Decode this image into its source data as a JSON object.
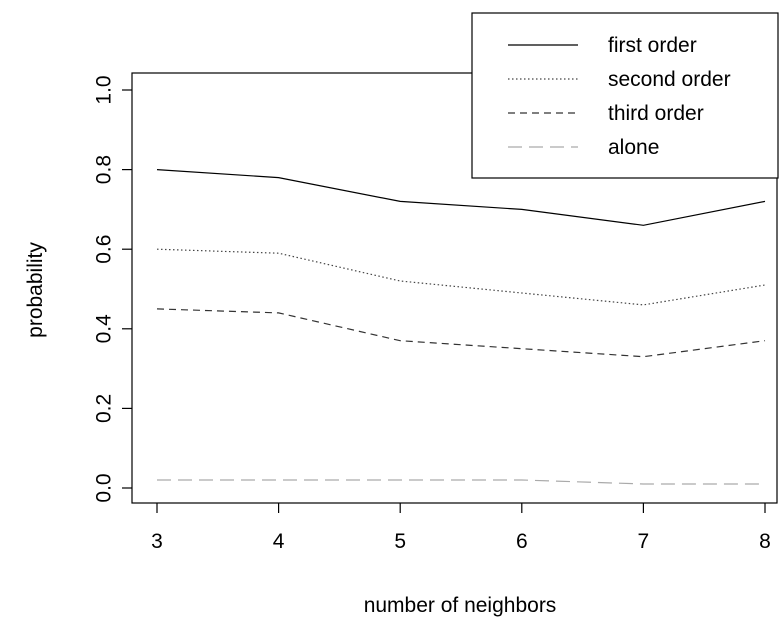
{
  "chart_data": {
    "type": "line",
    "title": "",
    "xlabel": "number of neighbors",
    "ylabel": "probability",
    "x": [
      3,
      4,
      5,
      6,
      7,
      8
    ],
    "x_ticks": [
      "3",
      "4",
      "5",
      "6",
      "7",
      "8"
    ],
    "y_ticks": [
      "0.0",
      "0.2",
      "0.4",
      "0.6",
      "0.8",
      "1.0"
    ],
    "xlim": [
      3,
      8
    ],
    "ylim": [
      0,
      1
    ],
    "grid": false,
    "legend_position": "top-right",
    "series": [
      {
        "name": "first order",
        "values": [
          0.8,
          0.78,
          0.72,
          0.7,
          0.66,
          0.72
        ],
        "color": "#000000",
        "dash": "solid"
      },
      {
        "name": "second order",
        "values": [
          0.6,
          0.59,
          0.52,
          0.49,
          0.46,
          0.51
        ],
        "color": "#444444",
        "dash": "dotted"
      },
      {
        "name": "third order",
        "values": [
          0.45,
          0.44,
          0.37,
          0.35,
          0.33,
          0.37
        ],
        "color": "#333333",
        "dash": "short-dash"
      },
      {
        "name": "alone",
        "values": [
          0.02,
          0.02,
          0.02,
          0.02,
          0.01,
          0.01
        ],
        "color": "#aaaaaa",
        "dash": "long-dash"
      }
    ]
  }
}
